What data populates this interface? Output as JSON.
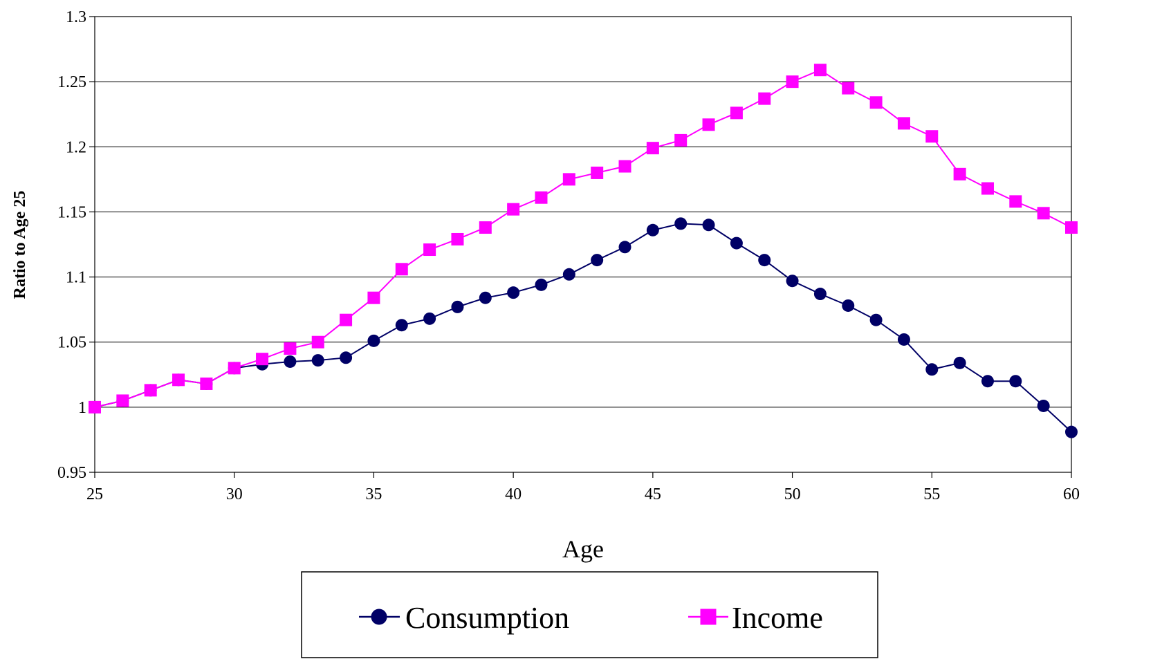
{
  "chart_data": {
    "type": "line",
    "title": "",
    "xlabel": "Age",
    "ylabel": "Ratio to Age 25",
    "xlim": [
      25,
      60
    ],
    "ylim": [
      0.95,
      1.3
    ],
    "x_ticks": [
      25,
      30,
      35,
      40,
      45,
      50,
      55,
      60
    ],
    "x_tick_labels": [
      "25",
      "30",
      "35",
      "40",
      "45",
      "50",
      "55",
      "60"
    ],
    "y_ticks": [
      0.95,
      1,
      1.05,
      1.1,
      1.15,
      1.2,
      1.25,
      1.3
    ],
    "y_tick_labels": [
      "0.95",
      "1",
      "1.05",
      "1.1",
      "1.15",
      "1.2",
      "1.25",
      "1.3"
    ],
    "grid": "horizontal",
    "legend_position": "bottom",
    "x": [
      25,
      26,
      27,
      28,
      29,
      30,
      31,
      32,
      33,
      34,
      35,
      36,
      37,
      38,
      39,
      40,
      41,
      42,
      43,
      44,
      45,
      46,
      47,
      48,
      49,
      50,
      51,
      52,
      53,
      54,
      55,
      56,
      57,
      58,
      59,
      60
    ],
    "series": [
      {
        "name": "Consumption",
        "color": "#000066",
        "marker": "circle",
        "values": [
          1.0,
          1.005,
          1.013,
          1.021,
          1.018,
          1.03,
          1.033,
          1.035,
          1.036,
          1.038,
          1.051,
          1.063,
          1.068,
          1.077,
          1.084,
          1.088,
          1.094,
          1.102,
          1.113,
          1.123,
          1.136,
          1.141,
          1.14,
          1.126,
          1.113,
          1.097,
          1.087,
          1.078,
          1.067,
          1.052,
          1.029,
          1.034,
          1.02,
          1.02,
          1.001,
          0.981
        ]
      },
      {
        "name": "Income",
        "color": "#FF00FF",
        "marker": "square",
        "values": [
          1.0,
          1.005,
          1.013,
          1.021,
          1.018,
          1.03,
          1.037,
          1.045,
          1.05,
          1.067,
          1.084,
          1.106,
          1.121,
          1.129,
          1.138,
          1.152,
          1.161,
          1.175,
          1.18,
          1.185,
          1.199,
          1.205,
          1.217,
          1.226,
          1.237,
          1.25,
          1.259,
          1.245,
          1.234,
          1.218,
          1.208,
          1.179,
          1.168,
          1.158,
          1.149,
          1.138
        ]
      }
    ]
  }
}
